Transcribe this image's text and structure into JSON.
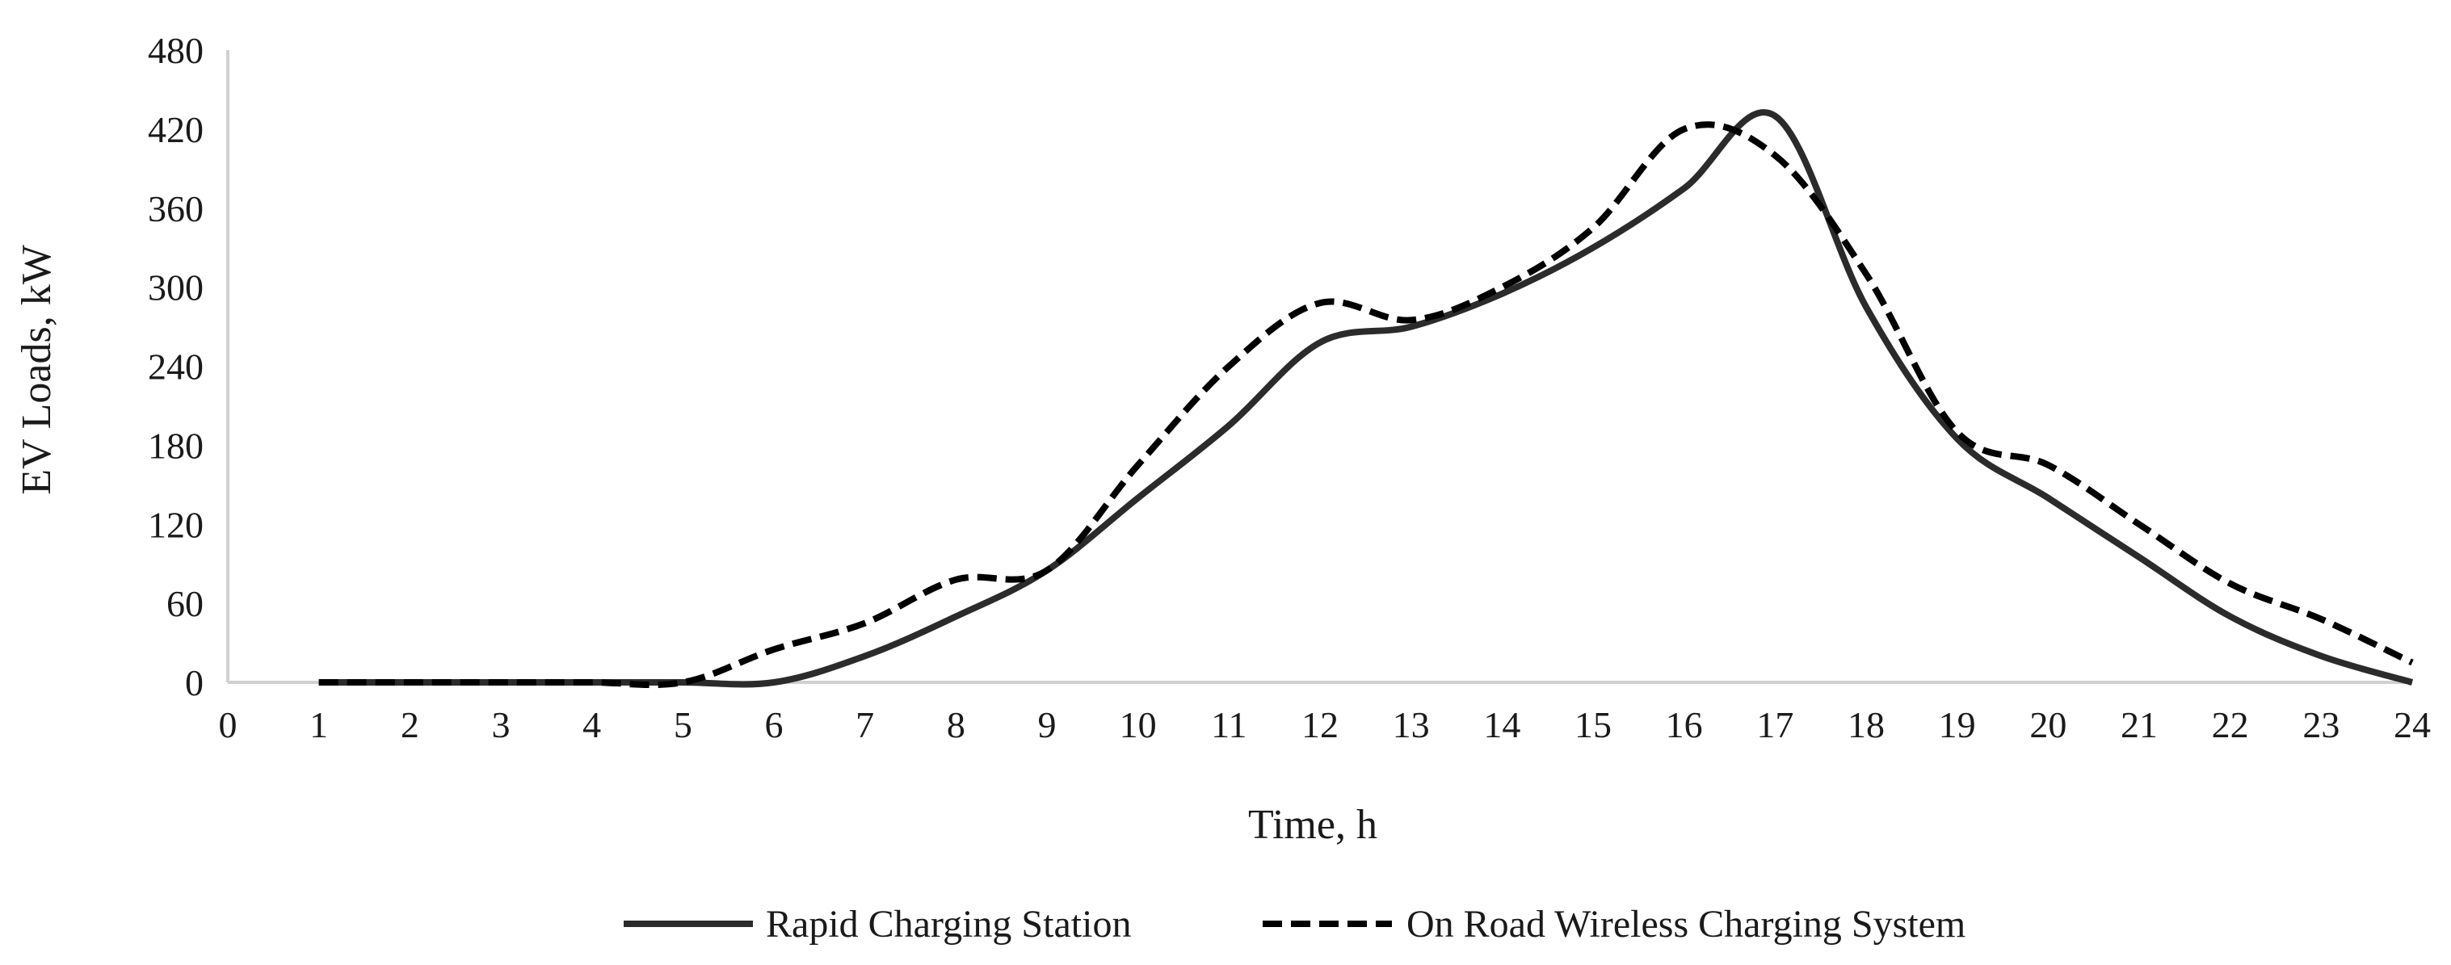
{
  "chart_data": {
    "type": "line",
    "title": "",
    "xlabel": "Time, h",
    "ylabel": "EV Loads, kW",
    "xlim": [
      0,
      24
    ],
    "ylim": [
      0,
      480
    ],
    "x_ticks": [
      "0",
      "1",
      "2",
      "3",
      "4",
      "5",
      "6",
      "7",
      "8",
      "9",
      "10",
      "11",
      "12",
      "13",
      "14",
      "15",
      "16",
      "17",
      "18",
      "19",
      "20",
      "21",
      "22",
      "23",
      "24"
    ],
    "y_ticks": [
      "0",
      "60",
      "120",
      "180",
      "240",
      "300",
      "360",
      "420",
      "480"
    ],
    "grid": false,
    "legend_position": "bottom",
    "x": [
      1,
      2,
      3,
      4,
      5,
      6,
      7,
      8,
      9,
      10,
      11,
      12,
      13,
      14,
      15,
      16,
      17,
      18,
      19,
      20,
      21,
      22,
      23,
      24
    ],
    "series": [
      {
        "name": "Rapid Charging Station",
        "style": "solid",
        "color": "#2b2b2b",
        "values": [
          0,
          0,
          0,
          0,
          0,
          0,
          20,
          50,
          85,
          140,
          195,
          258,
          270,
          295,
          330,
          375,
          430,
          285,
          185,
          140,
          95,
          50,
          20,
          0
        ]
      },
      {
        "name": "On Road Wireless Charging System",
        "style": "dashed",
        "color": "#000000",
        "values": [
          0,
          0,
          0,
          0,
          0,
          25,
          45,
          78,
          85,
          165,
          240,
          288,
          275,
          300,
          345,
          420,
          400,
          310,
          190,
          165,
          120,
          75,
          48,
          15
        ]
      }
    ]
  }
}
